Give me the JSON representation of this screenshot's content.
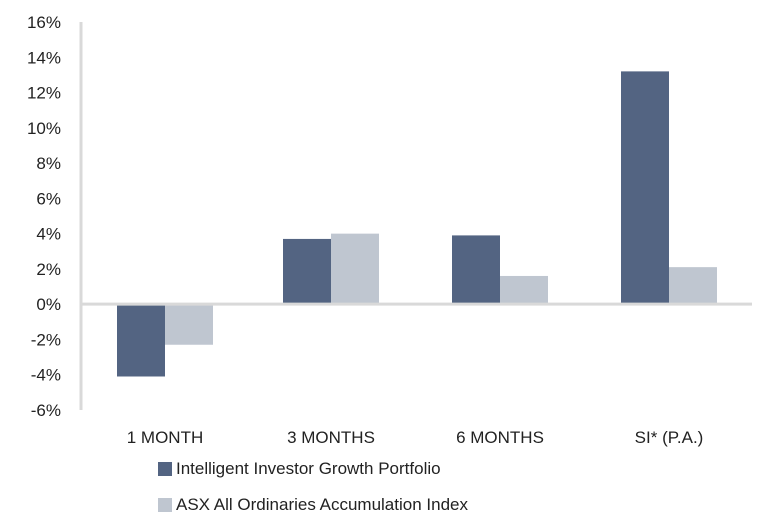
{
  "chart_data": {
    "type": "bar",
    "title": "",
    "xlabel": "",
    "ylabel": "",
    "categories": [
      "1 MONTH",
      "3 MONTHS",
      "6 MONTHS",
      "SI* (P.A.)"
    ],
    "series": [
      {
        "name": "Intelligent Investor Growth Portfolio",
        "color": "#536482",
        "values": [
          -4.1,
          3.7,
          3.9,
          13.2
        ]
      },
      {
        "name": "ASX All Ordinaries Accumulation Index",
        "color": "#bfc6d0",
        "values": [
          -2.3,
          4.0,
          1.6,
          2.1
        ]
      }
    ],
    "ylim": [
      -6,
      16
    ],
    "yticks": [
      16,
      14,
      12,
      10,
      8,
      6,
      4,
      2,
      0,
      -2,
      -4,
      -6
    ],
    "ytick_labels": [
      "16%",
      "14%",
      "12%",
      "10%",
      "8%",
      "6%",
      "4%",
      "2%",
      "0%",
      "-2%",
      "-4%",
      "-6%"
    ],
    "grid": false,
    "legend_position": "bottom-left",
    "axis_color": "#d9d9d9"
  }
}
